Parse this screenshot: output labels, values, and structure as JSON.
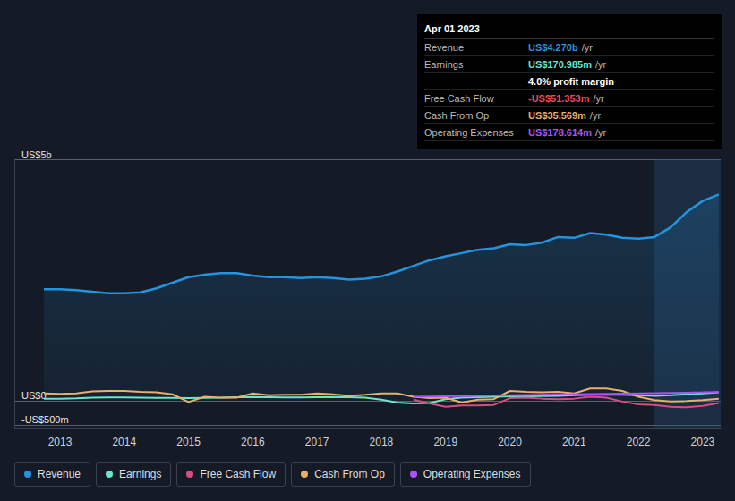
{
  "chart_data": {
    "type": "line",
    "x": [
      2012.75,
      2013.0,
      2013.25,
      2013.5,
      2013.75,
      2014.0,
      2014.25,
      2014.5,
      2014.75,
      2015.0,
      2015.25,
      2015.5,
      2015.75,
      2016.0,
      2016.25,
      2016.5,
      2016.75,
      2017.0,
      2017.25,
      2017.5,
      2017.75,
      2018.0,
      2018.25,
      2018.5,
      2018.75,
      2019.0,
      2019.25,
      2019.5,
      2019.75,
      2020.0,
      2020.25,
      2020.5,
      2020.75,
      2021.0,
      2021.25,
      2021.5,
      2021.75,
      2022.0,
      2022.25,
      2022.5,
      2022.75,
      2023.0,
      2023.25
    ],
    "series": [
      {
        "name": "Revenue",
        "color": "#2394df",
        "values": [
          2309,
          2309,
          2290,
          2259,
          2226,
          2226,
          2243,
          2326,
          2442,
          2558,
          2608,
          2641,
          2641,
          2591,
          2558,
          2558,
          2541,
          2558,
          2541,
          2508,
          2525,
          2575,
          2674,
          2791,
          2907,
          2990,
          3056,
          3123,
          3156,
          3239,
          3223,
          3272,
          3389,
          3372,
          3472,
          3439,
          3372,
          3355,
          3389,
          3588,
          3904,
          4136,
          4270
        ]
      },
      {
        "name": "Earnings",
        "color": "#6ce5c8",
        "values": [
          40,
          40,
          45,
          60,
          65,
          65,
          60,
          55,
          55,
          50,
          55,
          60,
          70,
          75,
          70,
          65,
          65,
          70,
          75,
          70,
          60,
          20,
          -40,
          -60,
          -50,
          30,
          60,
          70,
          80,
          90,
          90,
          95,
          100,
          110,
          120,
          125,
          120,
          110,
          100,
          110,
          130,
          150,
          170.985
        ]
      },
      {
        "name": "Free Cash Flow",
        "color": "#d64d82",
        "values": [
          null,
          null,
          null,
          null,
          null,
          null,
          null,
          null,
          null,
          null,
          null,
          null,
          null,
          null,
          null,
          null,
          null,
          null,
          null,
          null,
          null,
          null,
          null,
          20,
          -60,
          -130,
          -100,
          -100,
          -90,
          50,
          60,
          40,
          30,
          40,
          80,
          60,
          -20,
          -80,
          -90,
          -130,
          -140,
          -110,
          -51.353
        ]
      },
      {
        "name": "Cash From Op",
        "color": "#e8b06a",
        "values": [
          150,
          140,
          150,
          190,
          200,
          200,
          180,
          170,
          130,
          -30,
          80,
          60,
          60,
          150,
          110,
          120,
          120,
          150,
          130,
          100,
          120,
          150,
          150,
          80,
          50,
          60,
          -40,
          20,
          30,
          200,
          180,
          170,
          180,
          150,
          250,
          250,
          200,
          80,
          10,
          -20,
          -10,
          10,
          35.569
        ]
      },
      {
        "name": "Operating Expenses",
        "color": "#a855f7",
        "values": [
          null,
          null,
          null,
          null,
          null,
          null,
          null,
          null,
          null,
          null,
          null,
          null,
          null,
          null,
          null,
          null,
          null,
          null,
          null,
          null,
          null,
          null,
          null,
          80,
          85,
          90,
          95,
          100,
          105,
          110,
          115,
          120,
          125,
          130,
          135,
          140,
          145,
          150,
          155,
          160,
          165,
          170,
          178.614
        ]
      }
    ],
    "xlim": [
      2012.29,
      2023.28
    ],
    "xticks": [
      2013,
      2014,
      2015,
      2016,
      2017,
      2018,
      2019,
      2020,
      2021,
      2022,
      2023
    ],
    "ylim": [
      -560,
      5000
    ],
    "yticks": [
      {
        "value": -500,
        "label": "-US$500m"
      },
      {
        "value": 0,
        "label": "US$0"
      },
      {
        "value": 5000,
        "label": "US$5b"
      }
    ],
    "grid": true,
    "legend": "bottom",
    "shaded_range": [
      2022.25,
      2023.28
    ],
    "info_box": {
      "title": "Apr 01 2023",
      "rows": [
        {
          "label": "Revenue",
          "value": "US$4.270b",
          "unit": "/yr",
          "color": "#2394df"
        },
        {
          "label": "Earnings",
          "value": "US$170.985m",
          "unit": "/yr",
          "color": "#6ce5c8"
        },
        {
          "value": "4.0% profit margin",
          "color": "#ffffff"
        },
        {
          "label": "Free Cash Flow",
          "value": "-US$51.353m",
          "unit": "/yr",
          "color": "#e84a5f"
        },
        {
          "label": "Cash From Op",
          "value": "US$35.569m",
          "unit": "/yr",
          "color": "#e8b06a"
        },
        {
          "label": "Operating Expenses",
          "value": "US$178.614m",
          "unit": "/yr",
          "color": "#a855f7"
        }
      ]
    }
  }
}
